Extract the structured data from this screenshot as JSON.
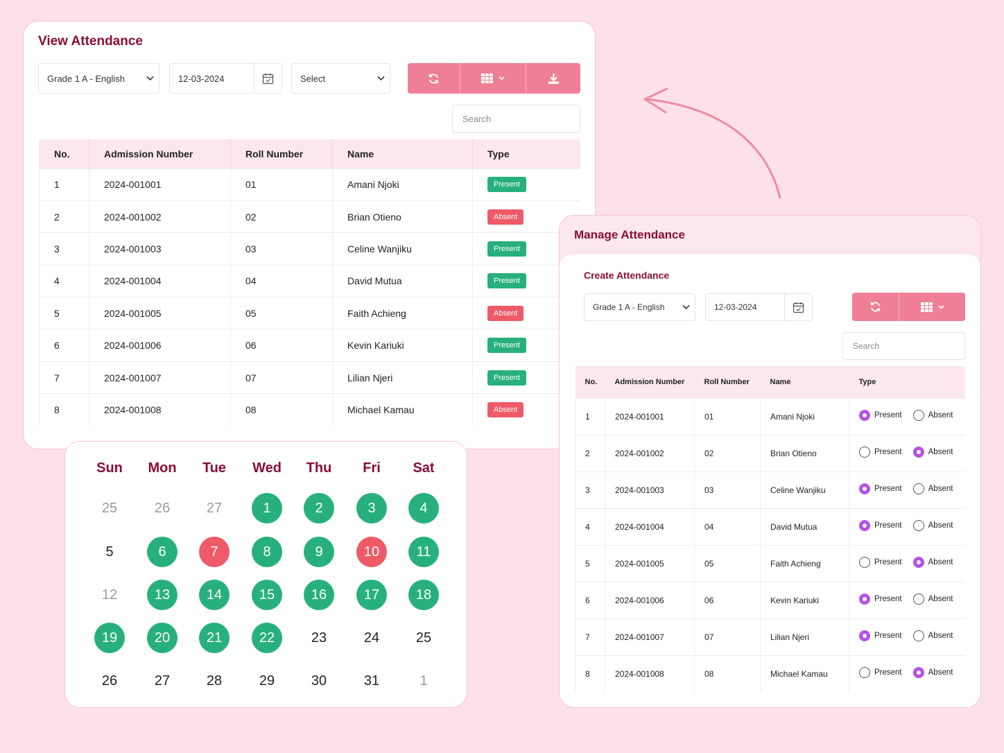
{
  "view": {
    "title": "View Attendance",
    "class_select": "Grade 1 A - English",
    "date": "12-03-2024",
    "type_select": "Select",
    "search_placeholder": "Search",
    "columns": [
      "No.",
      "Admission Number",
      "Roll Number",
      "Name",
      "Type"
    ],
    "rows": [
      {
        "no": "1",
        "adm": "2024-001001",
        "roll": "01",
        "name": "Amani Njoki",
        "type": "Present"
      },
      {
        "no": "2",
        "adm": "2024-001002",
        "roll": "02",
        "name": "Brian Otieno",
        "type": "Absent"
      },
      {
        "no": "3",
        "adm": "2024-001003",
        "roll": "03",
        "name": "Celine Wanjiku",
        "type": "Present"
      },
      {
        "no": "4",
        "adm": "2024-001004",
        "roll": "04",
        "name": "David Mutua",
        "type": "Present"
      },
      {
        "no": "5",
        "adm": "2024-001005",
        "roll": "05",
        "name": "Faith Achieng",
        "type": "Absent"
      },
      {
        "no": "6",
        "adm": "2024-001006",
        "roll": "06",
        "name": "Kevin Kariuki",
        "type": "Present"
      },
      {
        "no": "7",
        "adm": "2024-001007",
        "roll": "07",
        "name": "Lilian Njeri",
        "type": "Present"
      },
      {
        "no": "8",
        "adm": "2024-001008",
        "roll": "08",
        "name": "Michael Kamau",
        "type": "Absent"
      }
    ]
  },
  "calendar": {
    "days": [
      "Sun",
      "Mon",
      "Tue",
      "Wed",
      "Thu",
      "Fri",
      "Sat"
    ],
    "weeks": [
      [
        {
          "d": "25",
          "s": "other"
        },
        {
          "d": "26",
          "s": "other"
        },
        {
          "d": "27",
          "s": "other"
        },
        {
          "d": "1",
          "s": "present"
        },
        {
          "d": "2",
          "s": "present"
        },
        {
          "d": "3",
          "s": "present"
        },
        {
          "d": "4",
          "s": "present"
        }
      ],
      [
        {
          "d": "5",
          "s": "plain"
        },
        {
          "d": "6",
          "s": "present"
        },
        {
          "d": "7",
          "s": "absent"
        },
        {
          "d": "8",
          "s": "present"
        },
        {
          "d": "9",
          "s": "present"
        },
        {
          "d": "10",
          "s": "absent"
        },
        {
          "d": "11",
          "s": "present"
        }
      ],
      [
        {
          "d": "12",
          "s": "other"
        },
        {
          "d": "13",
          "s": "present"
        },
        {
          "d": "14",
          "s": "present"
        },
        {
          "d": "15",
          "s": "present"
        },
        {
          "d": "16",
          "s": "present"
        },
        {
          "d": "17",
          "s": "present"
        },
        {
          "d": "18",
          "s": "present"
        }
      ],
      [
        {
          "d": "19",
          "s": "present"
        },
        {
          "d": "20",
          "s": "present"
        },
        {
          "d": "21",
          "s": "present"
        },
        {
          "d": "22",
          "s": "present"
        },
        {
          "d": "23",
          "s": "plain"
        },
        {
          "d": "24",
          "s": "plain"
        },
        {
          "d": "25",
          "s": "plain"
        }
      ],
      [
        {
          "d": "26",
          "s": "plain"
        },
        {
          "d": "27",
          "s": "plain"
        },
        {
          "d": "28",
          "s": "plain"
        },
        {
          "d": "29",
          "s": "plain"
        },
        {
          "d": "30",
          "s": "plain"
        },
        {
          "d": "31",
          "s": "plain"
        },
        {
          "d": "1",
          "s": "other"
        }
      ]
    ]
  },
  "manage": {
    "title": "Manage Attendance",
    "subtitle": "Create Attendance",
    "class_select": "Grade 1 A - English",
    "date": "12-03-2024",
    "search_placeholder": "Search",
    "columns": [
      "No.",
      "Admission Number",
      "Roll Number",
      "Name",
      "Type"
    ],
    "present_label": "Present",
    "absent_label": "Absent",
    "rows": [
      {
        "no": "1",
        "adm": "2024-001001",
        "roll": "01",
        "name": "Amani Njoki",
        "selected": "Present"
      },
      {
        "no": "2",
        "adm": "2024-001002",
        "roll": "02",
        "name": "Brian Otieno",
        "selected": "Absent"
      },
      {
        "no": "3",
        "adm": "2024-001003",
        "roll": "03",
        "name": "Celine Wanjiku",
        "selected": "Present"
      },
      {
        "no": "4",
        "adm": "2024-001004",
        "roll": "04",
        "name": "David Mutua",
        "selected": "Present"
      },
      {
        "no": "5",
        "adm": "2024-001005",
        "roll": "05",
        "name": "Faith Achieng",
        "selected": "Absent"
      },
      {
        "no": "6",
        "adm": "2024-001006",
        "roll": "06",
        "name": "Kevin Kariuki",
        "selected": "Present"
      },
      {
        "no": "7",
        "adm": "2024-001007",
        "roll": "07",
        "name": "Lilian Njeri",
        "selected": "Present"
      },
      {
        "no": "8",
        "adm": "2024-001008",
        "roll": "08",
        "name": "Michael Kamau",
        "selected": "Absent"
      }
    ]
  },
  "colors": {
    "accent": "#ef7f96",
    "title": "#8b0d33",
    "present": "#27b07d",
    "absent": "#ee5a68",
    "radio_on": "#b552e4",
    "background": "#fde1ea"
  },
  "icons": [
    "chevron-down-icon",
    "calendar-icon",
    "refresh-icon",
    "grid-icon",
    "download-icon",
    "arrow-icon"
  ]
}
